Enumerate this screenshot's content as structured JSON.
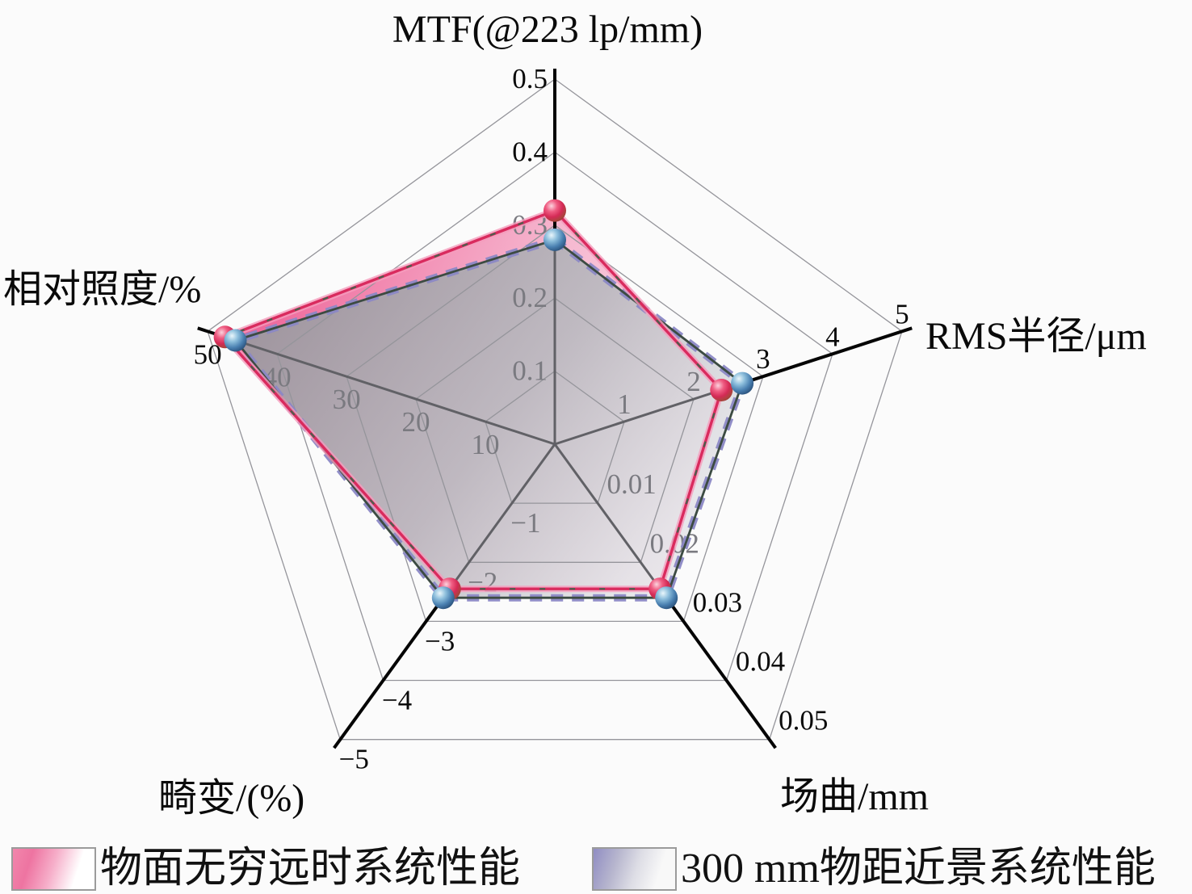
{
  "figure": {
    "background": "#fbfbfb"
  },
  "chart_data": {
    "type": "radar",
    "shape": "pentagon",
    "grid": true,
    "levels": 5,
    "axes": [
      {
        "label": "MTF(@223 lp/mm)",
        "min": 0,
        "max": 0.5,
        "ticks": [
          0.1,
          0.2,
          0.3,
          0.4,
          0.5
        ],
        "tick_labels": [
          "0.1",
          "0.2",
          "0.3",
          "0.4",
          "0.5"
        ]
      },
      {
        "label": "RMS半径/μm",
        "min": 0,
        "max": 5,
        "ticks": [
          1,
          2,
          3,
          4,
          5
        ],
        "tick_labels": [
          "1",
          "2",
          "3",
          "4",
          "5"
        ]
      },
      {
        "label": "场曲/mm",
        "min": 0,
        "max": 0.05,
        "ticks": [
          0.01,
          0.02,
          0.03,
          0.04,
          0.05
        ],
        "tick_labels": [
          "0.01",
          "0.02",
          "0.03",
          "0.04",
          "0.05"
        ]
      },
      {
        "label": "畸变/(%)",
        "min": 0,
        "max": -5,
        "ticks": [
          -1,
          -2,
          -3,
          -4,
          -5
        ],
        "tick_labels": [
          "−1",
          "−2",
          "−3",
          "−4",
          "−5"
        ]
      },
      {
        "label": "相对照度/%",
        "min": 0,
        "max": 50,
        "ticks": [
          10,
          20,
          30,
          40,
          50
        ],
        "tick_labels": [
          "10",
          "20",
          "30",
          "40",
          "50"
        ]
      }
    ],
    "series": [
      {
        "name": "物面无穷远时系统性能",
        "values": [
          0.32,
          2.4,
          0.0245,
          -2.45,
          47.5
        ],
        "line_color": "#d92b5e",
        "line_glow": "#f59cbd",
        "dash_overlay": "#2f6b4a",
        "fill_from": "#ec4f8a",
        "fill_mid": "#f5a7c5",
        "fill_to": "#fdeef5",
        "marker": "red-sphere"
      },
      {
        "name": "300 mm物距近景系统性能",
        "values": [
          0.28,
          2.7,
          0.026,
          -2.6,
          46
        ],
        "line_color": "#3c4b42",
        "dash_overlay": "#8b88c5",
        "fill_from": "#97979d",
        "fill_mid": "#b9b9bf",
        "fill_to": "#f8f8fa",
        "marker": "blue-sphere"
      }
    ],
    "legend_position": "bottom"
  },
  "legend": {
    "items": [
      {
        "label": "物面无穷远时系统性能"
      },
      {
        "label": "300 mm物距近景系统性能"
      }
    ]
  }
}
